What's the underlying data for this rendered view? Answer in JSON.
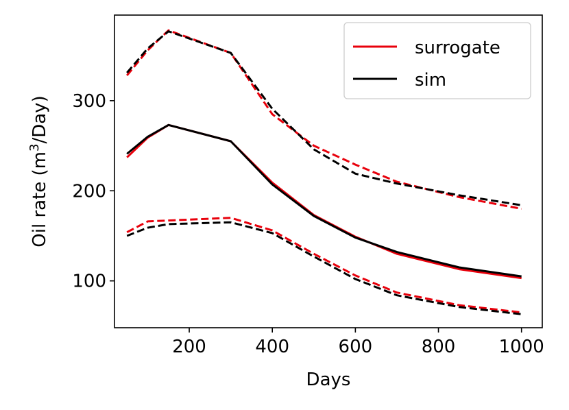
{
  "chart_data": {
    "type": "line",
    "title": "",
    "xlabel": "Days",
    "ylabel_prefix": "Oil rate (m",
    "ylabel_sup": "3",
    "ylabel_suffix": "/Day)",
    "xlim": [
      20,
      1050
    ],
    "ylim": [
      48,
      395
    ],
    "xticks": [
      200,
      400,
      600,
      800,
      1000
    ],
    "xtick_labels": [
      "200",
      "400",
      "600",
      "800",
      "1000"
    ],
    "yticks": [
      100,
      200,
      300
    ],
    "ytick_labels": [
      "100",
      "200",
      "300"
    ],
    "grid": false,
    "legend_position": "top-right",
    "legend": [
      {
        "label": "surrogate",
        "color": "#e8000b"
      },
      {
        "label": "sim",
        "color": "#000000"
      }
    ],
    "series": [
      {
        "name": "surrogate",
        "role": "upper",
        "color": "#e8000b",
        "style": "dashed",
        "x": [
          50,
          100,
          150,
          300,
          400,
          500,
          600,
          700,
          850,
          1000
        ],
        "y": [
          328,
          356,
          378,
          353,
          285,
          250,
          229,
          210,
          193,
          180
        ]
      },
      {
        "name": "sim",
        "role": "upper",
        "color": "#000000",
        "style": "dashed",
        "x": [
          50,
          100,
          150,
          300,
          400,
          500,
          600,
          700,
          850,
          1000
        ],
        "y": [
          331,
          358,
          377,
          353,
          291,
          246,
          219,
          208,
          195,
          184
        ]
      },
      {
        "name": "surrogate",
        "role": "median",
        "color": "#e8000b",
        "style": "solid",
        "x": [
          50,
          100,
          150,
          300,
          400,
          500,
          600,
          700,
          850,
          1000
        ],
        "y": [
          237,
          259,
          273,
          255,
          209,
          173,
          149,
          130,
          113,
          103
        ]
      },
      {
        "name": "sim",
        "role": "median",
        "color": "#000000",
        "style": "solid",
        "x": [
          50,
          100,
          150,
          300,
          400,
          500,
          600,
          700,
          850,
          1000
        ],
        "y": [
          241,
          260,
          273,
          255,
          207,
          172,
          148,
          132,
          115,
          105
        ]
      },
      {
        "name": "surrogate",
        "role": "lower",
        "color": "#e8000b",
        "style": "dashed",
        "x": [
          50,
          100,
          150,
          300,
          400,
          500,
          600,
          700,
          850,
          1000
        ],
        "y": [
          154,
          166,
          167,
          170,
          156,
          130,
          106,
          87,
          73,
          65
        ]
      },
      {
        "name": "sim",
        "role": "lower",
        "color": "#000000",
        "style": "dashed",
        "x": [
          50,
          100,
          150,
          300,
          400,
          500,
          600,
          700,
          850,
          1000
        ],
        "y": [
          150,
          159,
          163,
          165,
          153,
          127,
          102,
          84,
          71,
          63
        ]
      }
    ]
  }
}
